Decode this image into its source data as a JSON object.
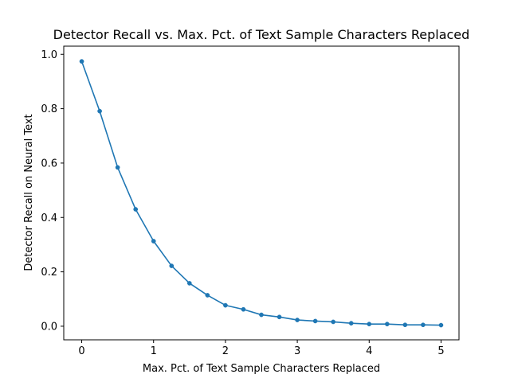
{
  "chart_data": {
    "type": "line",
    "title": "Detector Recall vs. Max. Pct. of Text Sample Characters Replaced",
    "xlabel": "Max. Pct. of Text Sample Characters Replaced",
    "ylabel": "Detector Recall on Neural Text",
    "xlim": [
      -0.25,
      5.25
    ],
    "ylim": [
      -0.05,
      1.03
    ],
    "xticks": [
      0,
      1,
      2,
      3,
      4,
      5
    ],
    "xtick_labels": [
      "0",
      "1",
      "2",
      "3",
      "4",
      "5"
    ],
    "yticks": [
      0.0,
      0.2,
      0.4,
      0.6,
      0.8,
      1.0
    ],
    "ytick_labels": [
      "0.0",
      "0.2",
      "0.4",
      "0.6",
      "0.8",
      "1.0"
    ],
    "grid": false,
    "legend": "none",
    "color": "#1f77b4",
    "marker": "circle",
    "series": [
      {
        "x": [
          0,
          0.25,
          0.5,
          0.75,
          1.0,
          1.25,
          1.5,
          1.75,
          2.0,
          2.25,
          2.5,
          2.75,
          3.0,
          3.25,
          3.5,
          3.75,
          4.0,
          4.25,
          4.5,
          4.75,
          5.0
        ],
        "y": [
          0.974,
          0.791,
          0.584,
          0.43,
          0.313,
          0.222,
          0.158,
          0.114,
          0.077,
          0.062,
          0.042,
          0.034,
          0.023,
          0.019,
          0.016,
          0.011,
          0.008,
          0.008,
          0.005,
          0.005,
          0.004
        ]
      }
    ]
  }
}
